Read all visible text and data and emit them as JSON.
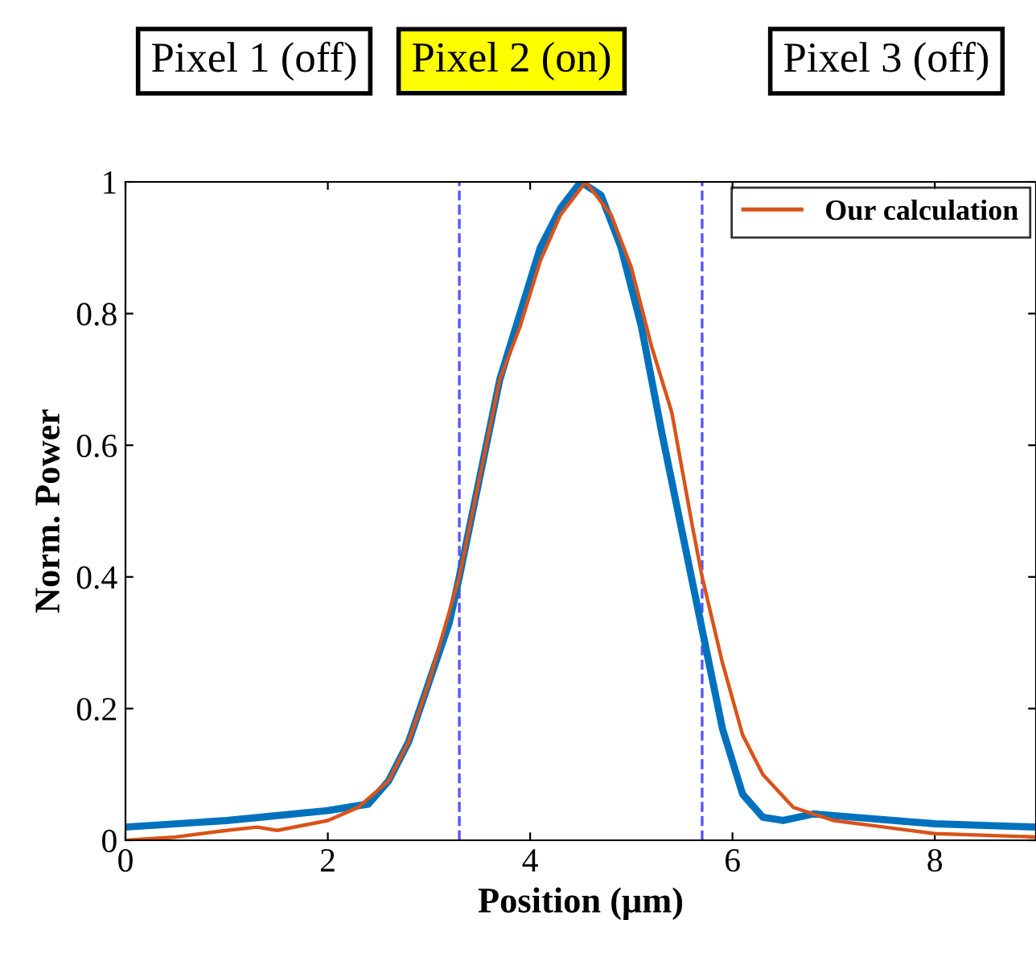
{
  "chart_data": {
    "type": "line",
    "xlabel": "Position (μm)",
    "ylabel": "Norm. Power",
    "annotations": [
      "Pixel 1 (off)",
      "Pixel 2 (on)",
      "Pixel 3 (off)"
    ],
    "xlim": [
      0,
      9
    ],
    "xticks": [
      0,
      2,
      4,
      6,
      8
    ],
    "ylim": [
      0,
      1
    ],
    "yticks": [
      0,
      0.2,
      0.4,
      0.6,
      0.8,
      1
    ],
    "grid": false,
    "legend": "top right",
    "marker": "none",
    "line_style": "solid",
    "ref_lines": [
      {
        "axis": "x",
        "value": 3.3,
        "color": "#5555ff",
        "line_style": "dashed"
      },
      {
        "axis": "x",
        "value": 5.7,
        "color": "#5555ff",
        "line_style": "dashed"
      }
    ],
    "series": [
      {
        "color": "#0072bd",
        "x": [
          0,
          1,
          2,
          2.4,
          2.6,
          2.8,
          3.0,
          3.2,
          3.3,
          3.5,
          3.7,
          3.9,
          4.1,
          4.3,
          4.5,
          4.7,
          4.9,
          5.1,
          5.3,
          5.5,
          5.7,
          5.9,
          6.1,
          6.3,
          6.5,
          6.8,
          7.2,
          8,
          9
        ],
        "values": [
          0.02,
          0.03,
          0.045,
          0.055,
          0.09,
          0.15,
          0.24,
          0.33,
          0.4,
          0.55,
          0.7,
          0.8,
          0.9,
          0.96,
          1.0,
          0.98,
          0.9,
          0.78,
          0.62,
          0.47,
          0.32,
          0.17,
          0.07,
          0.035,
          0.03,
          0.04,
          0.035,
          0.025,
          0.02
        ]
      },
      {
        "name": "Our calculation",
        "color": "#d95319",
        "x": [
          0,
          0.5,
          1,
          1.3,
          1.5,
          2,
          2.3,
          2.6,
          2.8,
          3.0,
          3.3,
          3.5,
          3.7,
          3.9,
          4.1,
          4.3,
          4.55,
          4.8,
          5.0,
          5.2,
          5.4,
          5.6,
          5.7,
          5.9,
          6.1,
          6.3,
          6.6,
          7,
          7.5,
          8,
          9
        ],
        "values": [
          0,
          0.005,
          0.015,
          0.02,
          0.015,
          0.03,
          0.05,
          0.09,
          0.15,
          0.24,
          0.4,
          0.55,
          0.7,
          0.78,
          0.88,
          0.95,
          1.0,
          0.95,
          0.87,
          0.75,
          0.65,
          0.48,
          0.4,
          0.27,
          0.16,
          0.1,
          0.05,
          0.03,
          0.02,
          0.01,
          0.005
        ]
      }
    ]
  }
}
